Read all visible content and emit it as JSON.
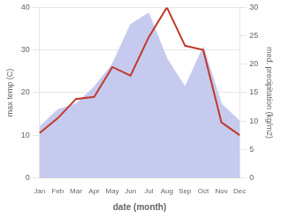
{
  "chart_data": {
    "type": "line",
    "categories": [
      "Jan",
      "Feb",
      "Mar",
      "Apr",
      "May",
      "Jun",
      "Jul",
      "Aug",
      "Sep",
      "Oct",
      "Nov",
      "Dec"
    ],
    "series": [
      {
        "type": "area",
        "axis": "y2",
        "color": "#c5caee",
        "values": [
          9,
          12,
          13,
          16,
          20,
          27,
          29,
          21,
          16,
          23,
          13,
          10
        ]
      },
      {
        "type": "line",
        "color": "#c0392b",
        "values": [
          10.5,
          14.0,
          18.5,
          19.0,
          26.0,
          24.0,
          33.0,
          40.0,
          31.0,
          30.0,
          13.0,
          10.0
        ]
      }
    ],
    "xlabel": "date (month)",
    "ylabel": "max temp (C)",
    "y2label": "med. precipitation (kg/m2)",
    "ylim": [
      0,
      40
    ],
    "yticks": [
      0,
      10,
      20,
      30,
      40
    ],
    "y2lim": [
      0,
      30
    ],
    "y2ticks": [
      0,
      5,
      10,
      15,
      20,
      25,
      30
    ],
    "grid": true
  }
}
